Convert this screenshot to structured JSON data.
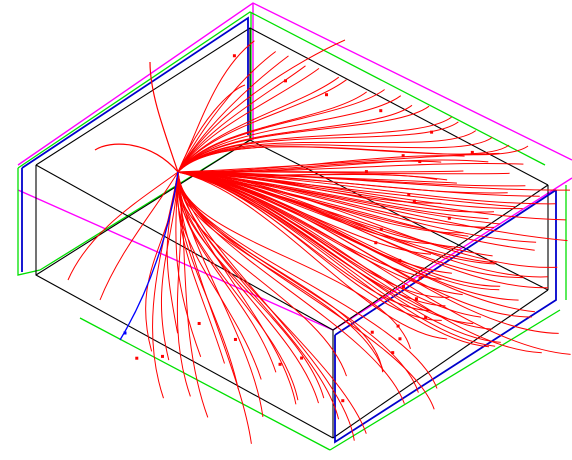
{
  "view": {
    "background": "#ffffff"
  },
  "colors": {
    "outer_frame": "#ff00ff",
    "inner_frame": "#00e000",
    "box_edges": "#000000",
    "end_plate": "#0000cc",
    "positive_tracks": "#ff0000",
    "negative_tracks": "#0000ff"
  },
  "elements": [
    "detector-outline",
    "particle-tracks",
    "track-hit-markers"
  ]
}
